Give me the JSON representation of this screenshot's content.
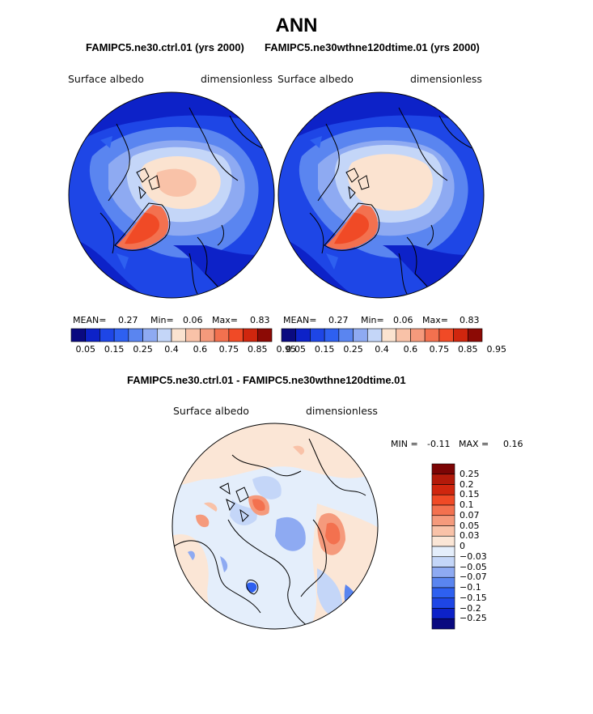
{
  "figure": {
    "title": "ANN",
    "panel1_title": "FAMIPC5.ne30.ctrl.01 (yrs 2000)",
    "panel2_title": "FAMIPC5.ne30wthne120dtime.01 (yrs 2000)",
    "diff_title": "FAMIPC5.ne30.ctrl.01 - FAMIPC5.ne30wthne120dtime.01"
  },
  "colors": {
    "abs_palette": [
      "#0a0a80",
      "#0d22c8",
      "#1e46e6",
      "#2e60f0",
      "#5a85f0",
      "#8eaaf2",
      "#c4d6f8",
      "#fbe3d0",
      "#f9c2a8",
      "#f59a7c",
      "#f3714f",
      "#f04a26",
      "#d0260e",
      "#8c0a05"
    ],
    "diff_palette": [
      "#0a0a80",
      "#0d22c8",
      "#1e46e6",
      "#2e60f0",
      "#5a85f0",
      "#8eaaf2",
      "#c4d6f8",
      "#e4eefb",
      "#fbe6d6",
      "#f9c2a8",
      "#f59a7c",
      "#f3714f",
      "#f04a26",
      "#d0260e",
      "#b31a0a",
      "#7c0505"
    ],
    "land_outline": "#000000"
  },
  "chart_data": [
    {
      "type": "polar-contour-map",
      "panel": "control",
      "variable": "Surface albedo",
      "units": "dimensionless",
      "stats": {
        "mean_label": "MEAN=",
        "mean": "0.27",
        "min_label": "Min=",
        "min": "0.06",
        "max_label": "Max=",
        "max": "0.83"
      },
      "colorbar_labels": [
        "0.05",
        "0.15",
        "0.25",
        "0.4",
        "0.6",
        "0.75",
        "0.85",
        "0.95"
      ],
      "levels": [
        0.05,
        0.1,
        0.15,
        0.2,
        0.25,
        0.3,
        0.4,
        0.5,
        0.6,
        0.7,
        0.75,
        0.8,
        0.85,
        0.9,
        0.95
      ]
    },
    {
      "type": "polar-contour-map",
      "panel": "test",
      "variable": "Surface albedo",
      "units": "dimensionless",
      "stats": {
        "mean_label": "MEAN=",
        "mean": "0.27",
        "min_label": "Min=",
        "min": "0.06",
        "max_label": "Max=",
        "max": "0.83"
      },
      "colorbar_labels": [
        "0.05",
        "0.15",
        "0.25",
        "0.4",
        "0.6",
        "0.75",
        "0.85",
        "0.95"
      ],
      "levels": [
        0.05,
        0.1,
        0.15,
        0.2,
        0.25,
        0.3,
        0.4,
        0.5,
        0.6,
        0.7,
        0.75,
        0.8,
        0.85,
        0.9,
        0.95
      ]
    },
    {
      "type": "polar-contour-map",
      "panel": "difference",
      "variable": "Surface albedo",
      "units": "dimensionless",
      "stats": {
        "min_label": "MIN =",
        "min": "-0.11",
        "max_label": "MAX =",
        "max": "0.16"
      },
      "colorbar_labels": [
        "0.25",
        "0.2",
        "0.15",
        "0.1",
        "0.07",
        "0.05",
        "0.03",
        "0",
        "−0.03",
        "−0.05",
        "−0.07",
        "−0.1",
        "−0.15",
        "−0.2",
        "−0.25"
      ]
    }
  ]
}
